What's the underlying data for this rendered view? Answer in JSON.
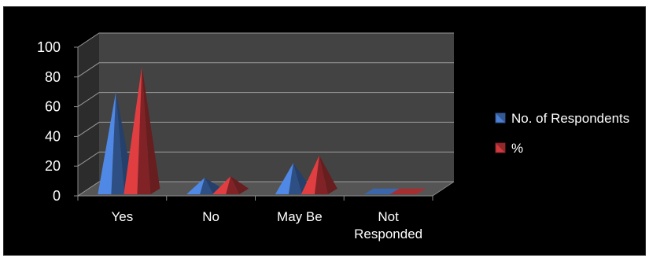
{
  "chart_data": {
    "type": "bar",
    "style": "3d-pyramid",
    "categories": [
      "Yes",
      "No",
      "May Be",
      "Not Responded"
    ],
    "category_lines": [
      [
        "Yes"
      ],
      [
        "No"
      ],
      [
        "May Be"
      ],
      [
        "Not",
        "Responded"
      ]
    ],
    "series": [
      {
        "name": "No. of Respondents",
        "values": [
          67,
          9,
          19,
          0
        ],
        "color": "#4a7fd4"
      },
      {
        "name": "%",
        "values": [
          84,
          10,
          24,
          0
        ],
        "color": "#d0393d"
      }
    ],
    "ylim": [
      0,
      100
    ],
    "yticks": [
      0,
      20,
      40,
      60,
      80,
      100
    ],
    "grid": true,
    "legend": "right",
    "title": "",
    "xlabel": "",
    "ylabel": ""
  }
}
